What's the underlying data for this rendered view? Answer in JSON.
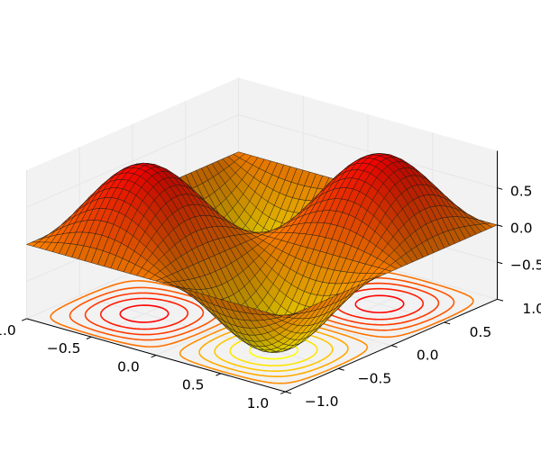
{
  "chart_data": {
    "type": "surface3d",
    "surface_function": "sin(pi*x) * sin(pi*y)",
    "x_range": [
      -1.0,
      1.0
    ],
    "y_range": [
      -1.0,
      1.0
    ],
    "z_range": [
      -1.0,
      1.0
    ],
    "grid_resolution": 40,
    "colormap": "autumn",
    "surface_color_range": [
      "#ffff00",
      "#ff0000"
    ],
    "contour_projection": {
      "plane": "z = -1 (floor)",
      "levels": [
        -0.9,
        -0.7,
        -0.5,
        -0.3,
        -0.1,
        0.1,
        0.3,
        0.5,
        0.7,
        0.9
      ],
      "colormap": "autumn_r"
    },
    "x_ticks": [
      "−1.0",
      "−0.5",
      "0.0",
      "0.5",
      "1.0"
    ],
    "y_ticks": [
      "−1.0",
      "−0.5",
      "0.0",
      "0.5",
      "1.0"
    ],
    "z_ticks": [
      "−0.5",
      "0.0",
      "0.5"
    ],
    "x_tick_values": [
      -1.0,
      -0.5,
      0.0,
      0.5,
      1.0
    ],
    "y_tick_values": [
      -1.0,
      -0.5,
      0.0,
      0.5,
      1.0
    ],
    "z_tick_values": [
      -0.5,
      0.0,
      0.5
    ],
    "grid": true,
    "pane_color": "#f2f2f2",
    "title": "",
    "xlabel": "",
    "ylabel": "",
    "zlabel": ""
  }
}
